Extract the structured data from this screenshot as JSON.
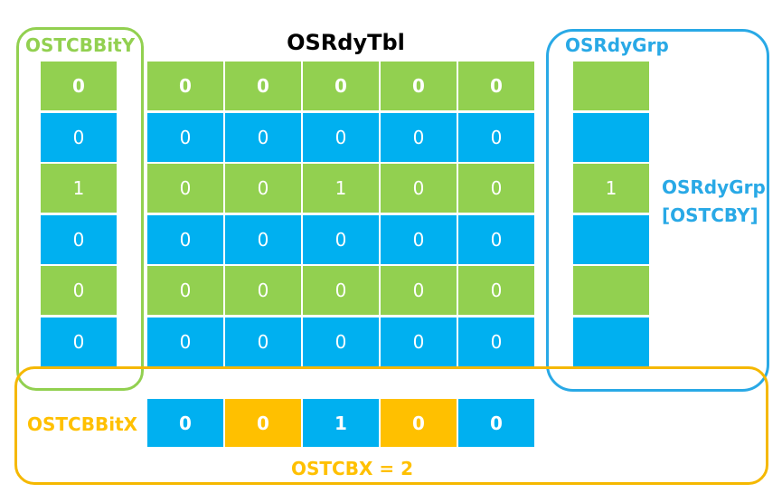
{
  "colors": {
    "green": "#92d050",
    "blue": "#00b0f0",
    "orange": "#ffc000",
    "green_frame": "#92d050",
    "blue_frame": "#29a9e6",
    "orange_frame": "#f5b800",
    "title": "#000000"
  },
  "tbl": {
    "title": "OSRdyTbl",
    "rows": [
      [
        "0",
        "0",
        "0",
        "0",
        "0"
      ],
      [
        "0",
        "0",
        "0",
        "0",
        "0"
      ],
      [
        "0",
        "0",
        "1",
        "0",
        "0"
      ],
      [
        "0",
        "0",
        "0",
        "0",
        "0"
      ],
      [
        "0",
        "0",
        "0",
        "0",
        "0"
      ],
      [
        "0",
        "0",
        "0",
        "0",
        "0"
      ]
    ]
  },
  "bity": {
    "label": "OSTCBBitY",
    "values": [
      "0",
      "0",
      "1",
      "0",
      "0",
      "0"
    ]
  },
  "grp": {
    "label": "OSRdyGrp",
    "values": [
      "",
      "",
      "1",
      "",
      "",
      ""
    ],
    "annotation_line1": "OSRdyGrp",
    "annotation_line2": "[OSTCBY]"
  },
  "bitx": {
    "label": "OSTCBBitX",
    "values": [
      "0",
      "0",
      "1",
      "0",
      "0"
    ],
    "cell_colors": [
      "blue",
      "orange",
      "blue",
      "orange",
      "blue"
    ],
    "caption": "OSTCBX = 2"
  }
}
